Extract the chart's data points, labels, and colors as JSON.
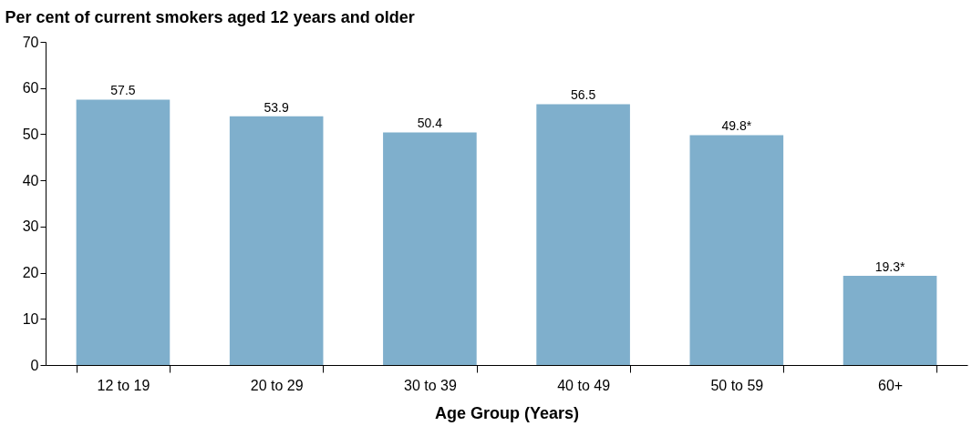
{
  "chart_data": {
    "type": "bar",
    "ylabel": "Per cent of current smokers aged 12 years and older",
    "xlabel": "Age Group (Years)",
    "categories": [
      "12 to 19",
      "20 to 29",
      "30 to 39",
      "40 to 49",
      "50 to 59",
      "60+"
    ],
    "values": [
      57.5,
      53.9,
      50.4,
      56.5,
      49.8,
      19.3
    ],
    "value_labels": [
      "57.5",
      "53.9",
      "50.4",
      "56.5",
      "49.8*",
      "19.3*"
    ],
    "color": "#7fafcc",
    "ylim": [
      0,
      70
    ],
    "yticks": [
      0,
      10,
      20,
      30,
      40,
      50,
      60,
      70
    ],
    "grid": false
  }
}
